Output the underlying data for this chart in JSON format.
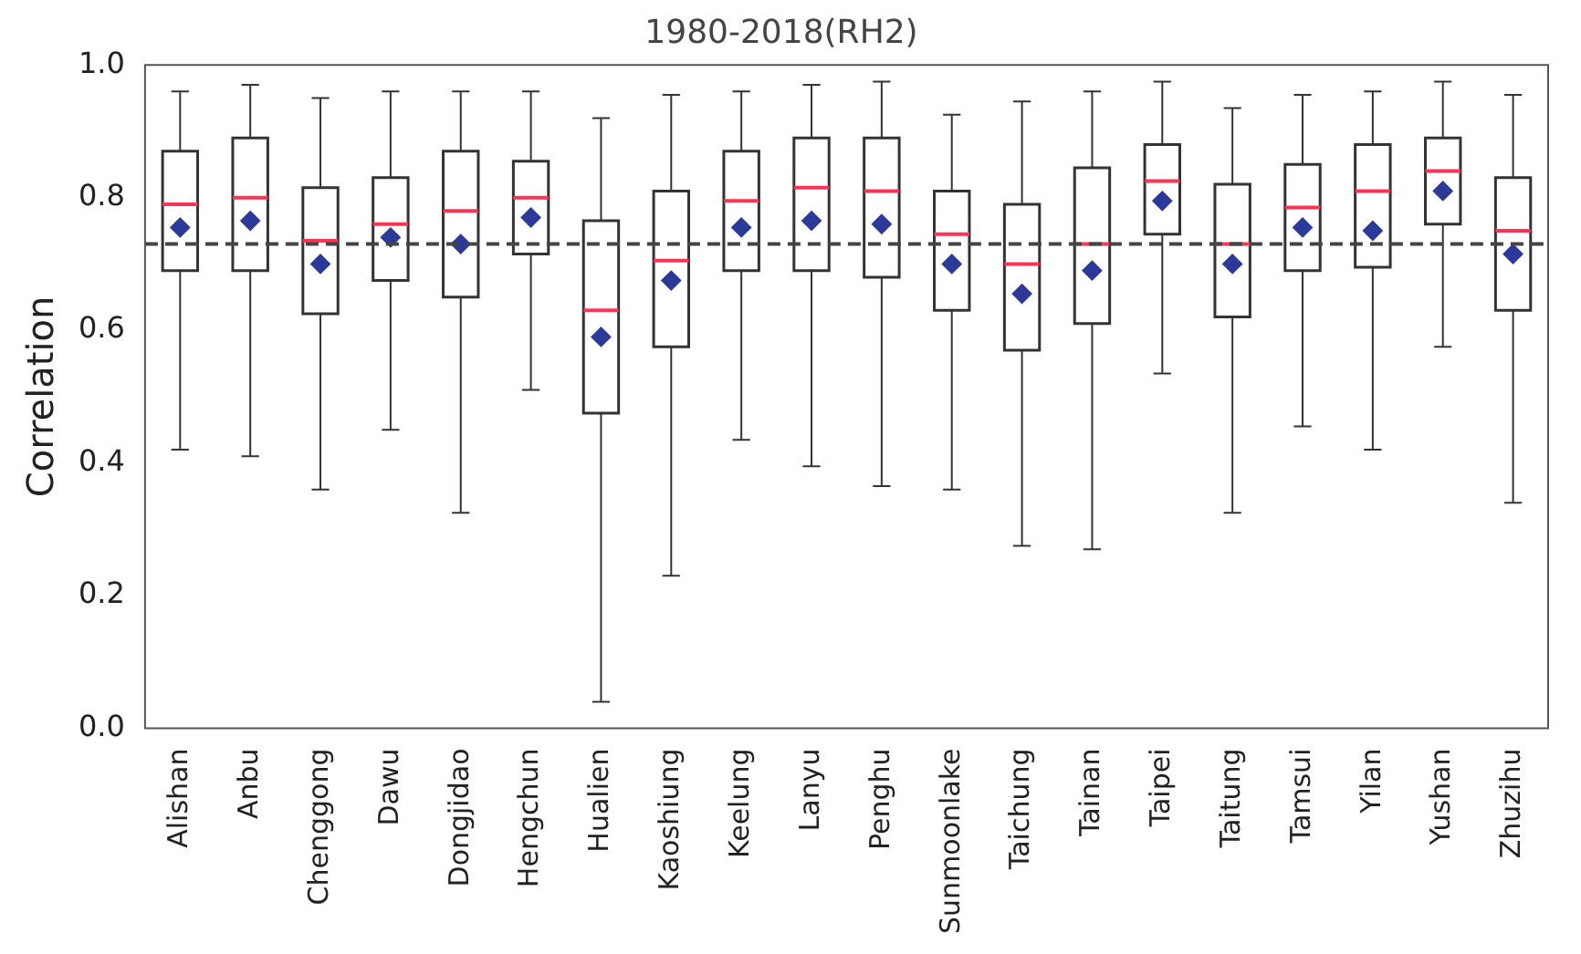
{
  "chart_data": {
    "type": "box",
    "title": "1980-2018(RH2)",
    "ylabel": "Correlation",
    "categories": [
      "Alishan",
      "Anbu",
      "Chenggong",
      "Dawu",
      "Dongjidao",
      "Hengchun",
      "Hualien",
      "Kaoshiung",
      "Keelung",
      "Lanyu",
      "Penghu",
      "Sunmoonlake",
      "Taichung",
      "Tainan",
      "Taipei",
      "Taitung",
      "Tamsui",
      "Yilan",
      "Yushan",
      "Zhuzihu"
    ],
    "boxes": [
      {
        "low": 0.42,
        "q1": 0.69,
        "median": 0.79,
        "q3": 0.87,
        "high": 0.96,
        "mean": 0.755
      },
      {
        "low": 0.41,
        "q1": 0.69,
        "median": 0.8,
        "q3": 0.89,
        "high": 0.97,
        "mean": 0.765
      },
      {
        "low": 0.36,
        "q1": 0.625,
        "median": 0.735,
        "q3": 0.815,
        "high": 0.95,
        "mean": 0.7
      },
      {
        "low": 0.45,
        "q1": 0.675,
        "median": 0.76,
        "q3": 0.83,
        "high": 0.96,
        "mean": 0.74
      },
      {
        "low": 0.325,
        "q1": 0.65,
        "median": 0.78,
        "q3": 0.87,
        "high": 0.96,
        "mean": 0.73
      },
      {
        "low": 0.51,
        "q1": 0.715,
        "median": 0.8,
        "q3": 0.855,
        "high": 0.96,
        "mean": 0.77
      },
      {
        "low": 0.04,
        "q1": 0.475,
        "median": 0.63,
        "q3": 0.765,
        "high": 0.92,
        "mean": 0.59
      },
      {
        "low": 0.23,
        "q1": 0.575,
        "median": 0.705,
        "q3": 0.81,
        "high": 0.955,
        "mean": 0.675
      },
      {
        "low": 0.435,
        "q1": 0.69,
        "median": 0.795,
        "q3": 0.87,
        "high": 0.96,
        "mean": 0.755
      },
      {
        "low": 0.395,
        "q1": 0.69,
        "median": 0.815,
        "q3": 0.89,
        "high": 0.97,
        "mean": 0.765
      },
      {
        "low": 0.365,
        "q1": 0.68,
        "median": 0.81,
        "q3": 0.89,
        "high": 0.975,
        "mean": 0.76
      },
      {
        "low": 0.36,
        "q1": 0.63,
        "median": 0.745,
        "q3": 0.81,
        "high": 0.925,
        "mean": 0.7
      },
      {
        "low": 0.275,
        "q1": 0.57,
        "median": 0.7,
        "q3": 0.79,
        "high": 0.945,
        "mean": 0.655
      },
      {
        "low": 0.27,
        "q1": 0.61,
        "median": 0.73,
        "q3": 0.845,
        "high": 0.96,
        "mean": 0.69
      },
      {
        "low": 0.535,
        "q1": 0.745,
        "median": 0.825,
        "q3": 0.88,
        "high": 0.975,
        "mean": 0.795
      },
      {
        "low": 0.325,
        "q1": 0.62,
        "median": 0.73,
        "q3": 0.82,
        "high": 0.935,
        "mean": 0.7
      },
      {
        "low": 0.455,
        "q1": 0.69,
        "median": 0.785,
        "q3": 0.85,
        "high": 0.955,
        "mean": 0.755
      },
      {
        "low": 0.42,
        "q1": 0.695,
        "median": 0.81,
        "q3": 0.88,
        "high": 0.96,
        "mean": 0.75
      },
      {
        "low": 0.575,
        "q1": 0.76,
        "median": 0.84,
        "q3": 0.89,
        "high": 0.975,
        "mean": 0.81
      },
      {
        "low": 0.34,
        "q1": 0.63,
        "median": 0.75,
        "q3": 0.83,
        "high": 0.955,
        "mean": 0.715
      }
    ],
    "color": "#333333",
    "ylim": [
      0,
      1
    ],
    "yticks": [
      {
        "value": 0,
        "label": "0.0"
      },
      {
        "value": 0.2,
        "label": "0.2"
      },
      {
        "value": 0.4,
        "label": "0.4"
      },
      {
        "value": 0.6,
        "label": "0.6"
      },
      {
        "value": 0.8,
        "label": "0.8"
      },
      {
        "value": 1,
        "label": "1.0"
      }
    ],
    "ref_lines": [
      {
        "axis": "y",
        "value": 0.73,
        "label": null,
        "color": "#444444",
        "line_style": "dashed"
      }
    ],
    "marker": "diamond",
    "grid": false,
    "legend": false
  }
}
